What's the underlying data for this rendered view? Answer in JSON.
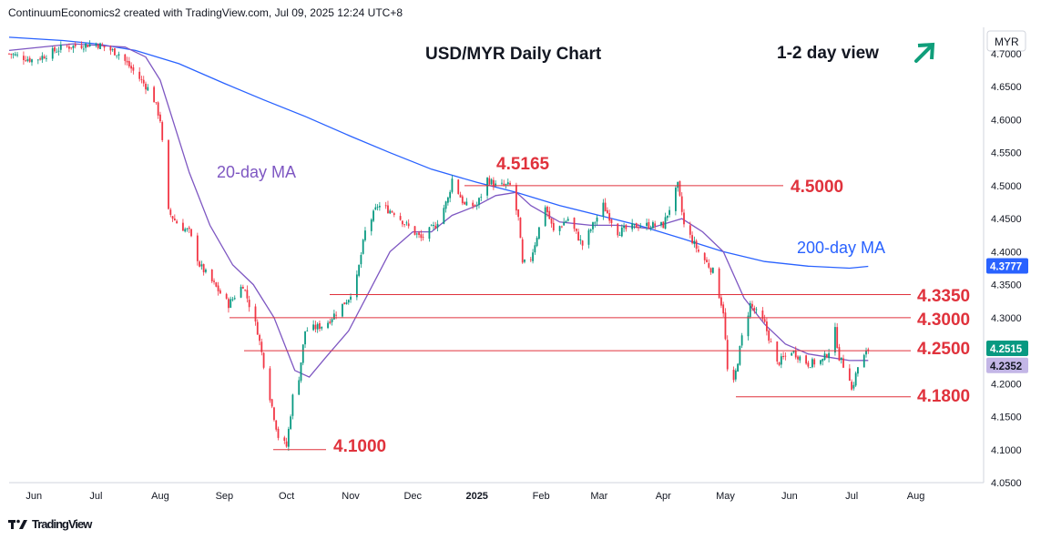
{
  "header": {
    "text": "ContinuumEconomics2 created with TradingView.com, Jul 09, 2025 12:24 UTC+8"
  },
  "footer": {
    "logo_text": "TradingView"
  },
  "colors": {
    "up": "#089981",
    "down": "#f23645",
    "ma20": "#7e57c2",
    "ma200": "#2962ff",
    "level_text": "#e0323c",
    "level_line": "#e0323c",
    "view_arrow": "#0f9e7a",
    "last_price_bg": "#2962ff"
  },
  "chart_data": {
    "type": "candlestick",
    "title": "USD/MYR Daily Chart",
    "view_label": "1-2 day view",
    "view_direction": "up",
    "currency_label": "MYR",
    "ylim": [
      4.05,
      4.74
    ],
    "y_ticks": [
      "4.7000",
      "4.6500",
      "4.6000",
      "4.5500",
      "4.5000",
      "4.4500",
      "4.4000",
      "4.3500",
      "4.3000",
      "4.2500",
      "4.2000",
      "4.1500",
      "4.1000",
      "4.0500"
    ],
    "x_ticks": [
      "Jun",
      "Jul",
      "Aug",
      "Sep",
      "Oct",
      "Nov",
      "Dec",
      "2025",
      "Feb",
      "Mar",
      "Apr",
      "May",
      "Jun",
      "Jul",
      "Aug"
    ],
    "price_labels": {
      "last_price": "4.2515",
      "ma20_value": "4.2352",
      "ma200_value": "4.3777"
    },
    "levels": [
      {
        "label": "4.5165",
        "value": 4.5165
      },
      {
        "label": "4.5000",
        "value": 4.5
      },
      {
        "label": "4.3350",
        "value": 4.335
      },
      {
        "label": "4.3000",
        "value": 4.3
      },
      {
        "label": "4.2500",
        "value": 4.25
      },
      {
        "label": "4.1800",
        "value": 4.18
      },
      {
        "label": "4.1000",
        "value": 4.1
      }
    ],
    "ma_labels": {
      "ma20": "20-day MA",
      "ma200": "200-day MA"
    },
    "close_series": {
      "start_date": "2024-05-20",
      "anchors": [
        [
          "2024-05-20",
          4.7
        ],
        [
          "2024-06-01",
          4.69
        ],
        [
          "2024-06-15",
          4.71
        ],
        [
          "2024-07-01",
          4.715
        ],
        [
          "2024-07-12",
          4.7
        ],
        [
          "2024-07-20",
          4.67
        ],
        [
          "2024-07-28",
          4.64
        ],
        [
          "2024-08-01",
          4.6
        ],
        [
          "2024-08-05",
          4.46
        ],
        [
          "2024-08-10",
          4.44
        ],
        [
          "2024-08-15",
          4.43
        ],
        [
          "2024-08-20",
          4.38
        ],
        [
          "2024-08-27",
          4.35
        ],
        [
          "2024-09-03",
          4.32
        ],
        [
          "2024-09-10",
          4.35
        ],
        [
          "2024-09-17",
          4.28
        ],
        [
          "2024-09-23",
          4.18
        ],
        [
          "2024-09-27",
          4.12
        ],
        [
          "2024-10-01",
          4.105
        ],
        [
          "2024-10-04",
          4.18
        ],
        [
          "2024-10-07",
          4.21
        ],
        [
          "2024-10-10",
          4.28
        ],
        [
          "2024-10-20",
          4.29
        ],
        [
          "2024-10-31",
          4.33
        ],
        [
          "2024-11-04",
          4.36
        ],
        [
          "2024-11-08",
          4.43
        ],
        [
          "2024-11-14",
          4.47
        ],
        [
          "2024-11-22",
          4.46
        ],
        [
          "2024-11-28",
          4.44
        ],
        [
          "2024-12-05",
          4.42
        ],
        [
          "2024-12-12",
          4.44
        ],
        [
          "2024-12-18",
          4.48
        ],
        [
          "2024-12-20",
          4.51
        ],
        [
          "2024-12-26",
          4.47
        ],
        [
          "2025-01-01",
          4.47
        ],
        [
          "2025-01-06",
          4.51
        ],
        [
          "2025-01-10",
          4.5
        ],
        [
          "2025-01-17",
          4.5
        ],
        [
          "2025-01-21",
          4.45
        ],
        [
          "2025-01-23",
          4.38
        ],
        [
          "2025-01-27",
          4.39
        ],
        [
          "2025-02-03",
          4.47
        ],
        [
          "2025-02-07",
          4.43
        ],
        [
          "2025-02-14",
          4.45
        ],
        [
          "2025-02-21",
          4.41
        ],
        [
          "2025-03-03",
          4.47
        ],
        [
          "2025-03-10",
          4.43
        ],
        [
          "2025-03-20",
          4.44
        ],
        [
          "2025-04-01",
          4.44
        ],
        [
          "2025-04-08",
          4.5
        ],
        [
          "2025-04-11",
          4.44
        ],
        [
          "2025-04-18",
          4.4
        ],
        [
          "2025-04-25",
          4.37
        ],
        [
          "2025-04-30",
          4.31
        ],
        [
          "2025-05-02",
          4.22
        ],
        [
          "2025-05-05",
          4.2
        ],
        [
          "2025-05-09",
          4.27
        ],
        [
          "2025-05-13",
          4.32
        ],
        [
          "2025-05-20",
          4.29
        ],
        [
          "2025-05-26",
          4.23
        ],
        [
          "2025-06-02",
          4.25
        ],
        [
          "2025-06-10",
          4.23
        ],
        [
          "2025-06-17",
          4.235
        ],
        [
          "2025-06-20",
          4.25
        ],
        [
          "2025-06-23",
          4.28
        ],
        [
          "2025-06-25",
          4.24
        ],
        [
          "2025-06-30",
          4.21
        ],
        [
          "2025-07-01",
          4.19
        ],
        [
          "2025-07-04",
          4.225
        ],
        [
          "2025-07-09",
          4.2515
        ]
      ]
    },
    "ma20_series": [
      [
        "2024-05-20",
        4.705
      ],
      [
        "2024-06-20",
        4.715
      ],
      [
        "2024-07-15",
        4.71
      ],
      [
        "2024-07-25",
        4.695
      ],
      [
        "2024-08-01",
        4.66
      ],
      [
        "2024-08-07",
        4.6
      ],
      [
        "2024-08-15",
        4.52
      ],
      [
        "2024-08-25",
        4.44
      ],
      [
        "2024-09-05",
        4.38
      ],
      [
        "2024-09-15",
        4.35
      ],
      [
        "2024-09-25",
        4.3
      ],
      [
        "2024-10-05",
        4.22
      ],
      [
        "2024-10-12",
        4.21
      ],
      [
        "2024-10-20",
        4.24
      ],
      [
        "2024-10-31",
        4.28
      ],
      [
        "2024-11-10",
        4.34
      ],
      [
        "2024-11-20",
        4.4
      ],
      [
        "2024-12-01",
        4.43
      ],
      [
        "2024-12-10",
        4.43
      ],
      [
        "2024-12-20",
        4.455
      ],
      [
        "2025-01-01",
        4.47
      ],
      [
        "2025-01-10",
        4.485
      ],
      [
        "2025-01-20",
        4.49
      ],
      [
        "2025-01-27",
        4.47
      ],
      [
        "2025-02-10",
        4.445
      ],
      [
        "2025-02-25",
        4.44
      ],
      [
        "2025-03-10",
        4.44
      ],
      [
        "2025-03-25",
        4.435
      ],
      [
        "2025-04-10",
        4.45
      ],
      [
        "2025-04-20",
        4.43
      ],
      [
        "2025-04-30",
        4.4
      ],
      [
        "2025-05-10",
        4.33
      ],
      [
        "2025-05-20",
        4.29
      ],
      [
        "2025-05-30",
        4.26
      ],
      [
        "2025-06-10",
        4.245
      ],
      [
        "2025-06-20",
        4.24
      ],
      [
        "2025-06-30",
        4.235
      ],
      [
        "2025-07-09",
        4.2352
      ]
    ],
    "ma200_series": [
      [
        "2024-05-20",
        4.725
      ],
      [
        "2024-06-15",
        4.72
      ],
      [
        "2024-07-01",
        4.715
      ],
      [
        "2024-07-20",
        4.705
      ],
      [
        "2024-08-10",
        4.685
      ],
      [
        "2024-09-01",
        4.655
      ],
      [
        "2024-09-20",
        4.63
      ],
      [
        "2024-10-10",
        4.605
      ],
      [
        "2024-11-01",
        4.575
      ],
      [
        "2024-11-20",
        4.55
      ],
      [
        "2024-12-10",
        4.525
      ],
      [
        "2025-01-01",
        4.505
      ],
      [
        "2025-01-20",
        4.49
      ],
      [
        "2025-02-10",
        4.47
      ],
      [
        "2025-03-01",
        4.455
      ],
      [
        "2025-03-20",
        4.44
      ],
      [
        "2025-04-10",
        4.42
      ],
      [
        "2025-04-30",
        4.4
      ],
      [
        "2025-05-20",
        4.385
      ],
      [
        "2025-06-10",
        4.378
      ],
      [
        "2025-06-30",
        4.375
      ],
      [
        "2025-07-09",
        4.3777
      ]
    ]
  }
}
